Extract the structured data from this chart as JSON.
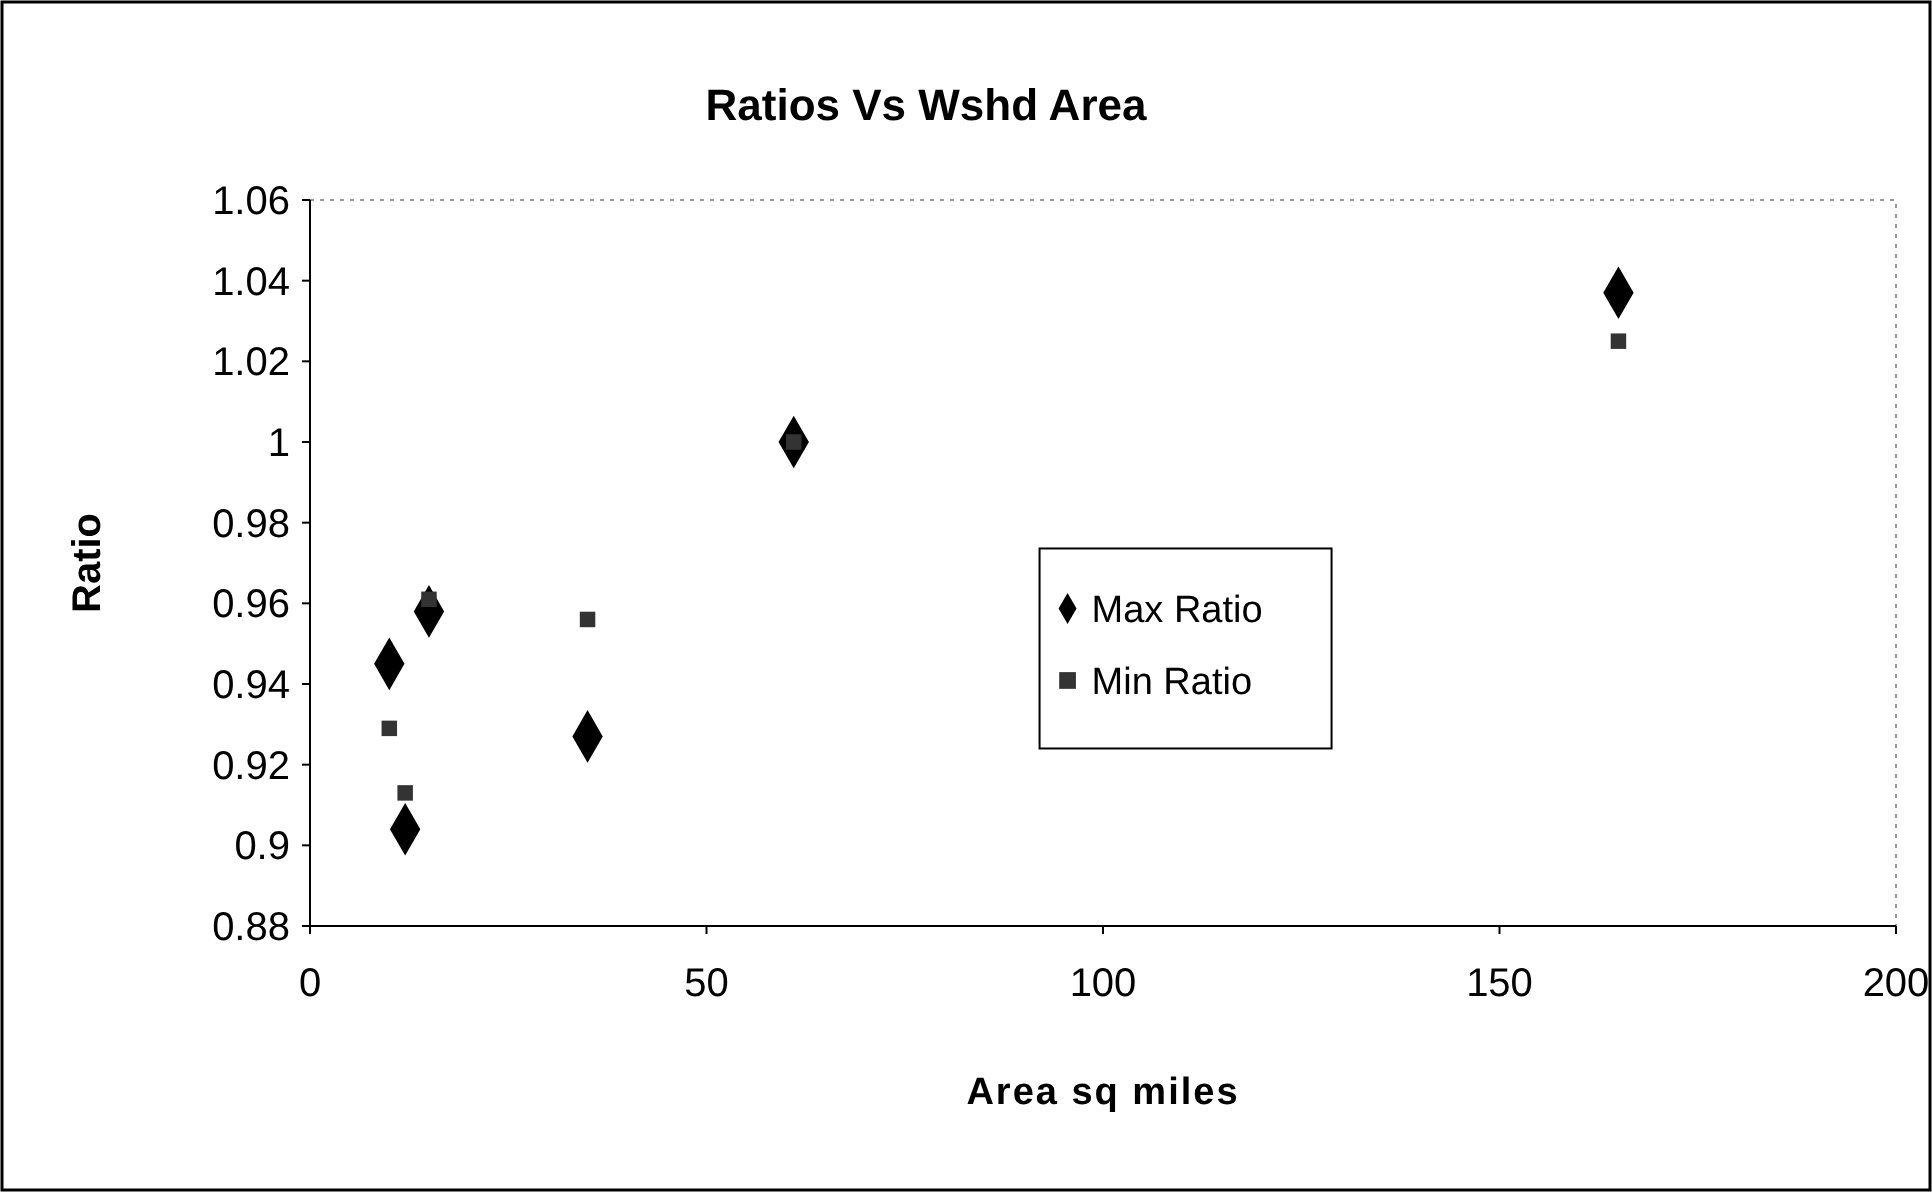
{
  "chart_data": {
    "type": "scatter",
    "title": "Ratios Vs Wshd Area",
    "xlabel": "Area sq miles",
    "ylabel": "Ratio",
    "xlim": [
      0,
      200
    ],
    "xticks": [
      0,
      50,
      100,
      150,
      200
    ],
    "ylim": [
      0.88,
      1.06
    ],
    "yticks": [
      0.88,
      0.9,
      0.92,
      0.94,
      0.96,
      0.98,
      1,
      1.02,
      1.04,
      1.06
    ],
    "grid": false,
    "legend": "right",
    "series": [
      {
        "name": "Max Ratio",
        "color": "#000000",
        "marker": "diamond",
        "x": [
          10,
          12,
          15,
          35,
          61,
          165
        ],
        "values": [
          0.945,
          0.904,
          0.958,
          0.927,
          1.0,
          1.037
        ]
      },
      {
        "name": "Min Ratio",
        "color": "#333333",
        "marker": "square",
        "x": [
          10,
          12,
          15,
          35,
          61,
          165
        ],
        "values": [
          0.929,
          0.913,
          0.961,
          0.956,
          1.0,
          1.025
        ]
      }
    ]
  }
}
